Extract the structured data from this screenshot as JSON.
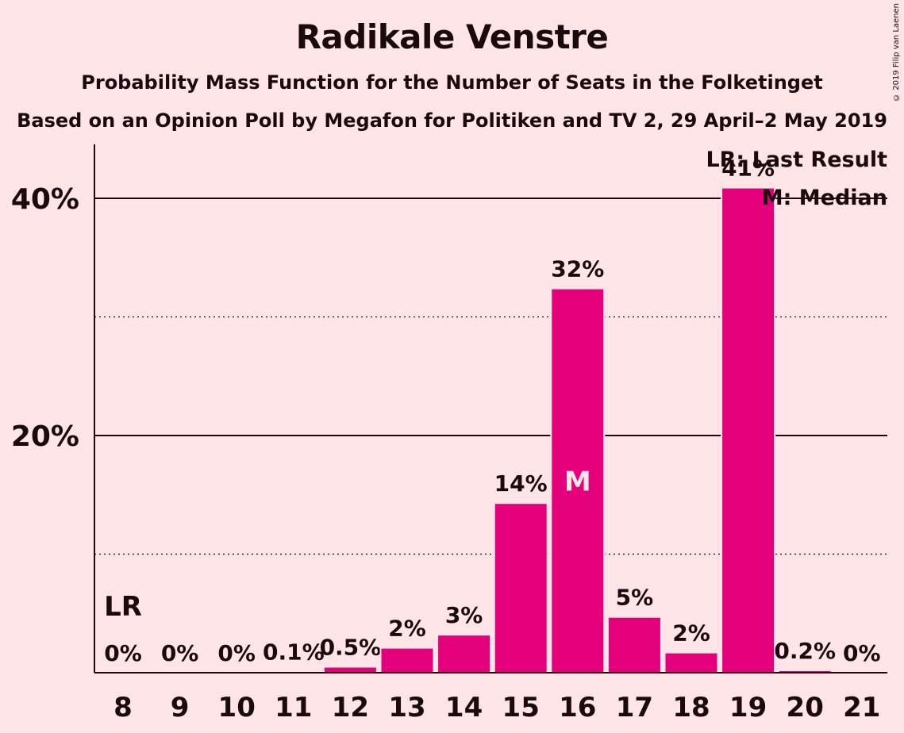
{
  "title": "Radikale Venstre",
  "subtitle": "Probability Mass Function for the Number of Seats in the Folketinget",
  "subtitle2": "Based on an Opinion Poll by Megafon for Politiken and TV 2, 29 April–2 May 2019",
  "copyright": "© 2019 Filip van Laenen",
  "colors": {
    "background": "#FFE4E8",
    "bar": "#E3007A",
    "text": "#1a0a0e"
  },
  "chart_data": {
    "type": "bar",
    "title": "Radikale Venstre",
    "xlabel": "",
    "ylabel": "",
    "categories": [
      "8",
      "9",
      "10",
      "11",
      "12",
      "13",
      "14",
      "15",
      "16",
      "17",
      "18",
      "19",
      "20",
      "21"
    ],
    "values": [
      0,
      0,
      0,
      0.1,
      0.5,
      2.1,
      3.2,
      14.3,
      32.4,
      4.7,
      1.7,
      40.9,
      0.2,
      0
    ],
    "data_labels": [
      "0%",
      "0%",
      "0%",
      "0.1%",
      "0.5%",
      "2%",
      "3%",
      "14%",
      "32%",
      "5%",
      "2%",
      "41%",
      "0.2%",
      "0%"
    ],
    "ylim": [
      0,
      45
    ],
    "yticks": [
      20,
      40
    ],
    "ytick_labels": [
      "20%",
      "40%"
    ],
    "dotted_gridlines": [
      10,
      30
    ],
    "solid_gridlines": [
      20,
      40
    ],
    "last_result_category": "8",
    "last_result_marker": "LR",
    "median_category": "16",
    "median_marker": "M",
    "legend": [
      "LR: Last Result",
      "M: Median"
    ],
    "legend_position": "top-right"
  }
}
